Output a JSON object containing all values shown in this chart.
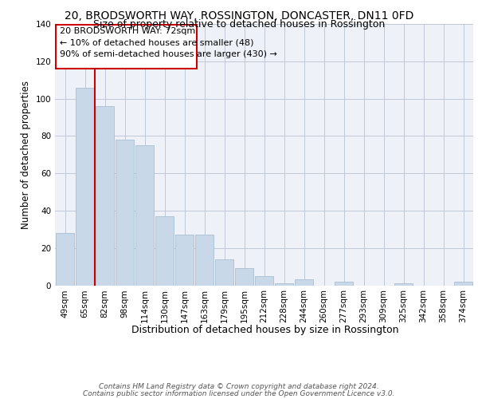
{
  "title": "20, BRODSWORTH WAY, ROSSINGTON, DONCASTER, DN11 0FD",
  "subtitle": "Size of property relative to detached houses in Rossington",
  "xlabel": "Distribution of detached houses by size in Rossington",
  "ylabel": "Number of detached properties",
  "categories": [
    "49sqm",
    "65sqm",
    "82sqm",
    "98sqm",
    "114sqm",
    "130sqm",
    "147sqm",
    "163sqm",
    "179sqm",
    "195sqm",
    "212sqm",
    "228sqm",
    "244sqm",
    "260sqm",
    "277sqm",
    "293sqm",
    "309sqm",
    "325sqm",
    "342sqm",
    "358sqm",
    "374sqm"
  ],
  "values": [
    28,
    106,
    96,
    78,
    75,
    37,
    27,
    27,
    14,
    9,
    5,
    1,
    3,
    0,
    2,
    0,
    0,
    1,
    0,
    0,
    2
  ],
  "bar_color": "#c8d8e8",
  "bar_edgecolor": "#a0b8cc",
  "vline_x": 1.5,
  "annotation_title": "20 BRODSWORTH WAY: 72sqm",
  "annotation_line1": "← 10% of detached houses are smaller (48)",
  "annotation_line2": "90% of semi-detached houses are larger (430) →",
  "annotation_box_color": "#cc0000",
  "vline_color": "#cc0000",
  "grid_color": "#c0c8d8",
  "background_color": "#eef2f8",
  "footer_line1": "Contains HM Land Registry data © Crown copyright and database right 2024.",
  "footer_line2": "Contains public sector information licensed under the Open Government Licence v3.0.",
  "ylim": [
    0,
    140
  ],
  "title_fontsize": 10,
  "subtitle_fontsize": 9,
  "xlabel_fontsize": 9,
  "ylabel_fontsize": 8.5,
  "tick_fontsize": 7.5,
  "annotation_fontsize": 8,
  "footer_fontsize": 6.5
}
